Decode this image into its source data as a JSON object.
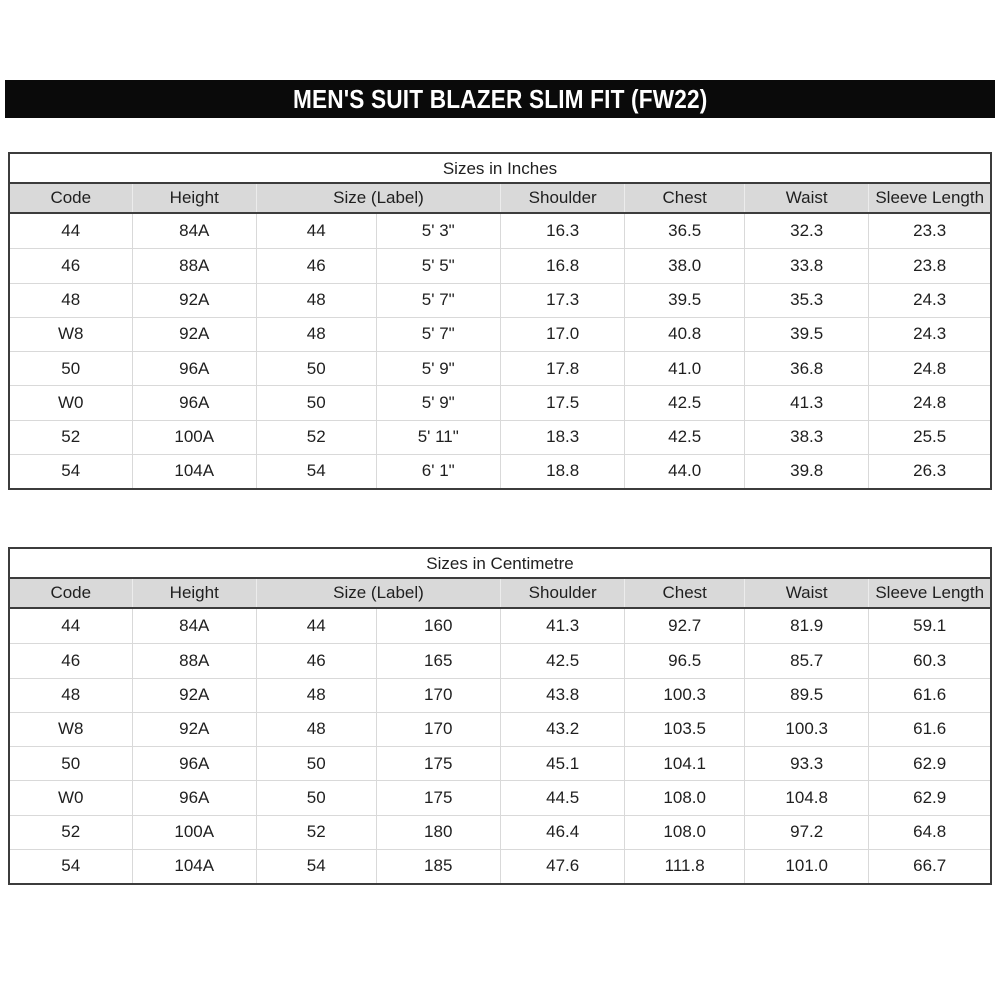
{
  "banner": {
    "title": "MEN'S SUIT BLAZER SLIM FIT (FW22)",
    "bg_color": "#0a0a0a",
    "text_color": "#ffffff"
  },
  "columns": [
    "Code",
    "Height",
    "Size (Label)",
    "Shoulder",
    "Chest",
    "Waist",
    "Sleeve Length"
  ],
  "tables": [
    {
      "title": "Sizes in Inches",
      "rows": [
        [
          "44",
          "84A",
          "44",
          "5' 3\"",
          "16.3",
          "36.5",
          "32.3",
          "23.3"
        ],
        [
          "46",
          "88A",
          "46",
          "5' 5\"",
          "16.8",
          "38.0",
          "33.8",
          "23.8"
        ],
        [
          "48",
          "92A",
          "48",
          "5' 7\"",
          "17.3",
          "39.5",
          "35.3",
          "24.3"
        ],
        [
          "W8",
          "92A",
          "48",
          "5' 7\"",
          "17.0",
          "40.8",
          "39.5",
          "24.3"
        ],
        [
          "50",
          "96A",
          "50",
          "5' 9\"",
          "17.8",
          "41.0",
          "36.8",
          "24.8"
        ],
        [
          "W0",
          "96A",
          "50",
          "5' 9\"",
          "17.5",
          "42.5",
          "41.3",
          "24.8"
        ],
        [
          "52",
          "100A",
          "52",
          "5' 11\"",
          "18.3",
          "42.5",
          "38.3",
          "25.5"
        ],
        [
          "54",
          "104A",
          "54",
          "6' 1\"",
          "18.8",
          "44.0",
          "39.8",
          "26.3"
        ]
      ]
    },
    {
      "title": "Sizes in Centimetre",
      "rows": [
        [
          "44",
          "84A",
          "44",
          "160",
          "41.3",
          "92.7",
          "81.9",
          "59.1"
        ],
        [
          "46",
          "88A",
          "46",
          "165",
          "42.5",
          "96.5",
          "85.7",
          "60.3"
        ],
        [
          "48",
          "92A",
          "48",
          "170",
          "43.8",
          "100.3",
          "89.5",
          "61.6"
        ],
        [
          "W8",
          "92A",
          "48",
          "170",
          "43.2",
          "103.5",
          "100.3",
          "61.6"
        ],
        [
          "50",
          "96A",
          "50",
          "175",
          "45.1",
          "104.1",
          "93.3",
          "62.9"
        ],
        [
          "W0",
          "96A",
          "50",
          "175",
          "44.5",
          "108.0",
          "104.8",
          "62.9"
        ],
        [
          "52",
          "100A",
          "52",
          "180",
          "46.4",
          "108.0",
          "97.2",
          "64.8"
        ],
        [
          "54",
          "104A",
          "54",
          "185",
          "47.6",
          "111.8",
          "101.0",
          "66.7"
        ]
      ]
    }
  ],
  "colors": {
    "header_row_bg": "#d9d9d9",
    "grid_line": "#d9d9d9",
    "dark_border": "#3c3c3c"
  }
}
